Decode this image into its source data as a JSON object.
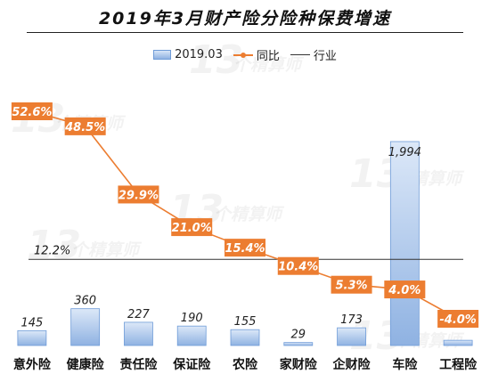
{
  "watermark": {
    "number": "13",
    "text": "个精算师"
  },
  "chart_data": {
    "type": "bar",
    "title": "2019年3月财产险分险种保费增速",
    "categories": [
      "意外险",
      "健康险",
      "责任险",
      "保证险",
      "农险",
      "家财险",
      "企财险",
      "车险",
      "工程险"
    ],
    "series": [
      {
        "name": "2019.03",
        "type": "bar",
        "values": [
          145,
          360,
          227,
          190,
          155,
          29,
          173,
          1994,
          51
        ]
      },
      {
        "name": "同比",
        "type": "line",
        "values": [
          52.6,
          48.5,
          29.9,
          21.0,
          15.4,
          10.4,
          5.3,
          4.0,
          -4.0
        ]
      }
    ],
    "bar_labels": [
      "145",
      "360",
      "227",
      "190",
      "155",
      "29",
      "173",
      "1,994",
      ""
    ],
    "line_labels": [
      "52.6%",
      "48.5%",
      "29.9%",
      "21.0%",
      "15.4%",
      "10.4%",
      "5.3%",
      "4.0%",
      "-4.0%"
    ],
    "reference": {
      "name": "行业",
      "value": 12.2,
      "label": "12.2%"
    },
    "ylim_bar": [
      0,
      2200
    ],
    "ylim_line": [
      -10,
      60
    ],
    "legend_position": "top",
    "grid": false,
    "colors": {
      "bar": "#8fb2e2",
      "bar_border": "#6f9cd8",
      "line": "#ec7d31",
      "reference": "#333333"
    }
  }
}
